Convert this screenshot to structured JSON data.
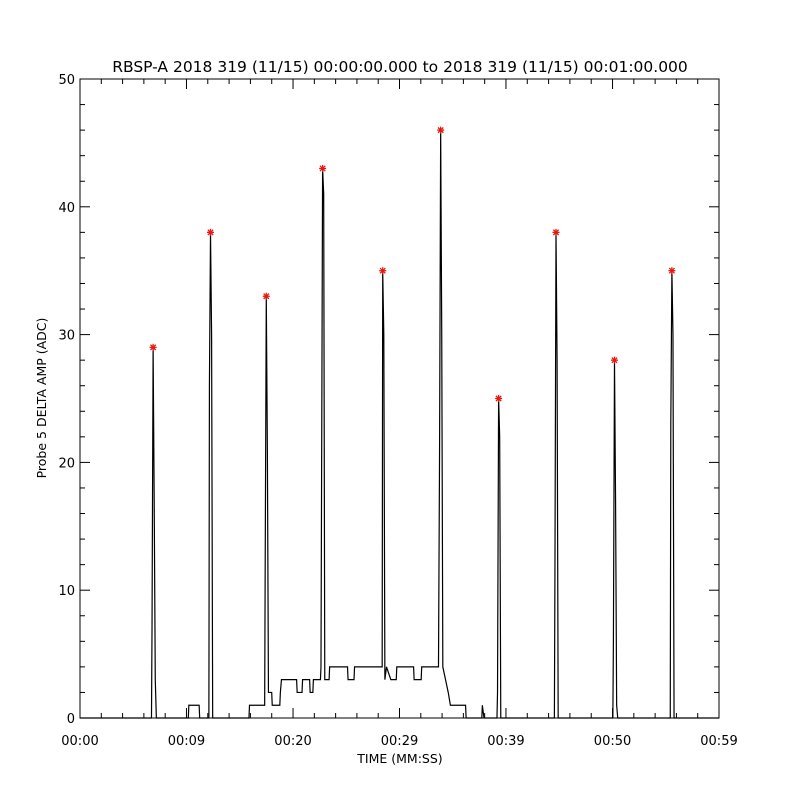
{
  "chart_data": {
    "type": "line",
    "title": "RBSP-A 2018 319 (11/15) 00:00:00.000 to 2018 319 (11/15) 00:01:00.000",
    "xlabel": "TIME (MM:SS)",
    "ylabel": "Probe 5 DELTA AMP (ADC)",
    "x_tick_labels": [
      "00:00",
      "00:09",
      "00:20",
      "00:29",
      "00:39",
      "00:50",
      "00:59"
    ],
    "x_ticks_seconds": [
      0,
      9.83,
      19.67,
      29.5,
      39.33,
      49.17,
      59
    ],
    "xlim_seconds": [
      0,
      59
    ],
    "ylim": [
      0,
      50
    ],
    "y_ticks": [
      0,
      10,
      20,
      30,
      40,
      50
    ],
    "grid": false,
    "series": [
      {
        "color": "#000000",
        "points": [
          [
            0,
            0
          ],
          [
            6.6,
            0
          ],
          [
            6.65,
            7
          ],
          [
            6.75,
            29
          ],
          [
            6.85,
            17
          ],
          [
            6.95,
            3
          ],
          [
            7.05,
            0
          ],
          [
            10.0,
            0
          ],
          [
            10.05,
            1
          ],
          [
            11.0,
            1
          ],
          [
            11.05,
            0
          ],
          [
            11.9,
            0
          ],
          [
            11.95,
            26
          ],
          [
            12.05,
            38
          ],
          [
            12.15,
            30
          ],
          [
            12.25,
            0
          ],
          [
            15.6,
            0
          ],
          [
            15.65,
            1
          ],
          [
            17.05,
            1
          ],
          [
            17.1,
            12
          ],
          [
            17.2,
            33
          ],
          [
            17.3,
            21
          ],
          [
            17.4,
            2
          ],
          [
            17.7,
            2
          ],
          [
            17.75,
            1
          ],
          [
            18.45,
            1
          ],
          [
            18.5,
            2
          ],
          [
            18.6,
            3
          ],
          [
            20.0,
            3
          ],
          [
            20.05,
            2
          ],
          [
            20.5,
            2
          ],
          [
            20.55,
            3
          ],
          [
            21.2,
            3
          ],
          [
            21.25,
            2
          ],
          [
            21.5,
            2
          ],
          [
            21.55,
            3
          ],
          [
            22.2,
            3
          ],
          [
            22.25,
            4
          ],
          [
            22.4,
            43
          ],
          [
            22.5,
            41
          ],
          [
            22.6,
            3
          ],
          [
            23.0,
            3
          ],
          [
            23.05,
            4
          ],
          [
            24.7,
            4
          ],
          [
            24.75,
            3
          ],
          [
            25.3,
            3
          ],
          [
            25.35,
            4
          ],
          [
            27.9,
            4
          ],
          [
            27.95,
            35
          ],
          [
            28.05,
            30
          ],
          [
            28.15,
            3
          ],
          [
            28.3,
            4
          ],
          [
            28.7,
            3
          ],
          [
            29.2,
            3
          ],
          [
            29.25,
            4
          ],
          [
            30.8,
            4
          ],
          [
            30.85,
            3
          ],
          [
            31.5,
            3
          ],
          [
            31.55,
            4
          ],
          [
            33.1,
            4
          ],
          [
            33.2,
            21
          ],
          [
            33.3,
            46
          ],
          [
            33.4,
            30
          ],
          [
            33.5,
            4
          ],
          [
            33.75,
            3
          ],
          [
            34.0,
            2
          ],
          [
            34.2,
            1
          ],
          [
            35.6,
            1
          ],
          [
            35.65,
            0
          ],
          [
            37.1,
            0
          ],
          [
            37.15,
            1
          ],
          [
            37.3,
            0
          ],
          [
            38.5,
            0
          ],
          [
            38.55,
            2
          ],
          [
            38.65,
            25
          ],
          [
            38.75,
            22
          ],
          [
            38.85,
            0
          ],
          [
            43.8,
            0
          ],
          [
            43.85,
            11
          ],
          [
            43.95,
            38
          ],
          [
            44.05,
            28
          ],
          [
            44.15,
            0
          ],
          [
            49.2,
            0
          ],
          [
            49.25,
            6
          ],
          [
            49.35,
            28
          ],
          [
            49.45,
            17
          ],
          [
            49.55,
            1
          ],
          [
            49.65,
            0
          ],
          [
            54.5,
            0
          ],
          [
            54.55,
            23
          ],
          [
            54.65,
            35
          ],
          [
            54.75,
            30
          ],
          [
            54.85,
            0
          ],
          [
            59,
            0
          ]
        ]
      }
    ],
    "peak_markers": {
      "color": "#e8190f",
      "symbol": "asterisk",
      "points": [
        [
          6.75,
          29
        ],
        [
          12.05,
          38
        ],
        [
          17.2,
          33
        ],
        [
          22.4,
          43
        ],
        [
          27.95,
          35
        ],
        [
          33.3,
          46
        ],
        [
          38.65,
          25
        ],
        [
          43.95,
          38
        ],
        [
          49.35,
          28
        ],
        [
          54.65,
          35
        ]
      ]
    }
  }
}
